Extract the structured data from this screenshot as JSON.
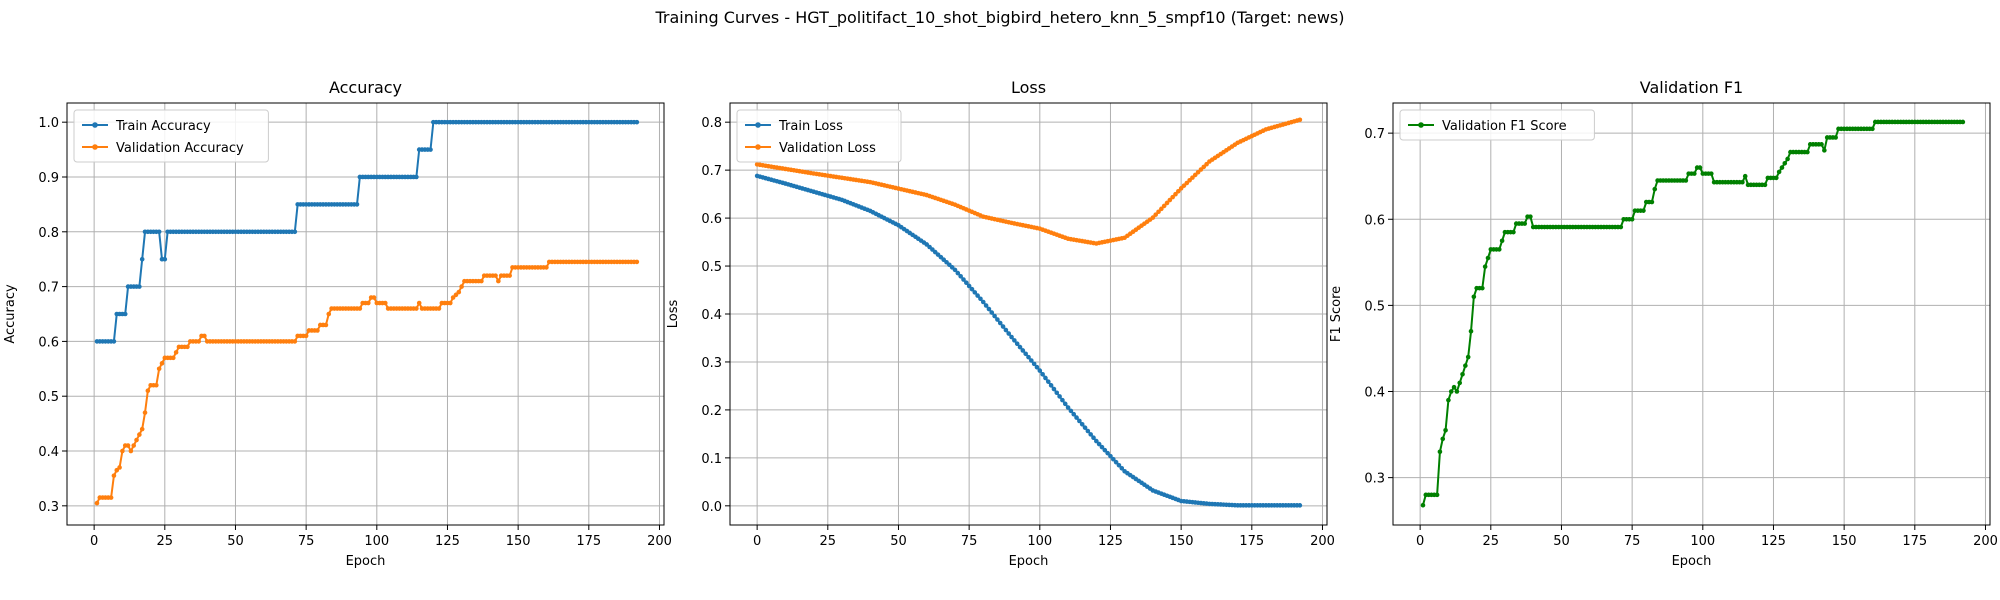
{
  "figure_title": "Training Curves - HGT_politifact_10_shot_bigbird_hetero_knn_5_smpf10 (Target: news)",
  "colors": {
    "blue": "#1f77b4",
    "orange": "#ff7f0e",
    "green": "#008000",
    "grid": "#b0b0b0"
  },
  "chart_data": [
    {
      "type": "line",
      "title": "Accuracy",
      "xlabel": "Epoch",
      "ylabel": "Accuracy",
      "xlim": [
        -9.6,
        201.6
      ],
      "ylim": [
        0.265,
        1.035
      ],
      "xticks": [
        0,
        25,
        50,
        75,
        100,
        125,
        150,
        175,
        200
      ],
      "yticks": [
        0.3,
        0.4,
        0.5,
        0.6,
        0.7,
        0.8,
        0.9,
        1.0
      ],
      "ytick_labels": [
        "0.3",
        "0.4",
        "0.5",
        "0.6",
        "0.7",
        "0.8",
        "0.9",
        "1.0"
      ],
      "grid": true,
      "legend": "upper-left",
      "series": [
        {
          "name": "Train Accuracy",
          "color": "blue",
          "knots": [
            [
              1,
              0.6
            ],
            [
              7,
              0.6
            ],
            [
              8,
              0.65
            ],
            [
              11,
              0.65
            ],
            [
              12,
              0.7
            ],
            [
              16,
              0.7
            ],
            [
              17,
              0.75
            ],
            [
              18,
              0.8
            ],
            [
              23,
              0.8
            ],
            [
              24,
              0.75
            ],
            [
              25,
              0.75
            ],
            [
              26,
              0.8
            ],
            [
              71,
              0.8
            ],
            [
              72,
              0.85
            ],
            [
              93,
              0.85
            ],
            [
              94,
              0.9
            ],
            [
              114,
              0.9
            ],
            [
              115,
              0.95
            ],
            [
              119,
              0.95
            ],
            [
              120,
              1.0
            ],
            [
              192,
              1.0
            ]
          ]
        },
        {
          "name": "Validation Accuracy",
          "color": "orange",
          "knots": [
            [
              1,
              0.305
            ],
            [
              2,
              0.315
            ],
            [
              6,
              0.315
            ],
            [
              7,
              0.355
            ],
            [
              8,
              0.365
            ],
            [
              9,
              0.37
            ],
            [
              10,
              0.4
            ],
            [
              11,
              0.41
            ],
            [
              12,
              0.41
            ],
            [
              13,
              0.4
            ],
            [
              14,
              0.41
            ],
            [
              15,
              0.42
            ],
            [
              16,
              0.43
            ],
            [
              17,
              0.44
            ],
            [
              18,
              0.47
            ],
            [
              19,
              0.51
            ],
            [
              20,
              0.52
            ],
            [
              22,
              0.52
            ],
            [
              23,
              0.55
            ],
            [
              24,
              0.56
            ],
            [
              25,
              0.57
            ],
            [
              28,
              0.57
            ],
            [
              29,
              0.58
            ],
            [
              30,
              0.59
            ],
            [
              33,
              0.59
            ],
            [
              34,
              0.6
            ],
            [
              37,
              0.6
            ],
            [
              38,
              0.61
            ],
            [
              39,
              0.61
            ],
            [
              40,
              0.6
            ],
            [
              71,
              0.6
            ],
            [
              72,
              0.61
            ],
            [
              75,
              0.61
            ],
            [
              76,
              0.62
            ],
            [
              79,
              0.62
            ],
            [
              80,
              0.63
            ],
            [
              82,
              0.63
            ],
            [
              83,
              0.65
            ],
            [
              84,
              0.66
            ],
            [
              94,
              0.66
            ],
            [
              95,
              0.67
            ],
            [
              97,
              0.67
            ],
            [
              98,
              0.68
            ],
            [
              99,
              0.68
            ],
            [
              100,
              0.67
            ],
            [
              103,
              0.67
            ],
            [
              104,
              0.66
            ],
            [
              114,
              0.66
            ],
            [
              115,
              0.67
            ],
            [
              116,
              0.66
            ],
            [
              122,
              0.66
            ],
            [
              123,
              0.67
            ],
            [
              126,
              0.67
            ],
            [
              127,
              0.68
            ],
            [
              129,
              0.69
            ],
            [
              130,
              0.7
            ],
            [
              131,
              0.71
            ],
            [
              137,
              0.71
            ],
            [
              138,
              0.72
            ],
            [
              142,
              0.72
            ],
            [
              143,
              0.71
            ],
            [
              144,
              0.72
            ],
            [
              147,
              0.72
            ],
            [
              148,
              0.735
            ],
            [
              160,
              0.735
            ],
            [
              161,
              0.745
            ],
            [
              192,
              0.745
            ]
          ]
        }
      ]
    },
    {
      "type": "line",
      "title": "Loss",
      "xlabel": "Epoch",
      "ylabel": "Loss",
      "xlim": [
        -9.6,
        201.6
      ],
      "ylim": [
        -0.04,
        0.84
      ],
      "xticks": [
        0,
        25,
        50,
        75,
        100,
        125,
        150,
        175,
        200
      ],
      "yticks": [
        0,
        0.1,
        0.2,
        0.3,
        0.4,
        0.5,
        0.6,
        0.7,
        0.8
      ],
      "ytick_labels": [
        "0.0",
        "0.1",
        "0.2",
        "0.3",
        "0.4",
        "0.5",
        "0.6",
        "0.7",
        "0.8"
      ],
      "grid": true,
      "legend": "upper-left",
      "series": [
        {
          "name": "Train Loss",
          "color": "blue",
          "knots": [
            [
              0,
              0.688
            ],
            [
              10,
              0.672
            ],
            [
              20,
              0.655
            ],
            [
              30,
              0.638
            ],
            [
              40,
              0.615
            ],
            [
              50,
              0.585
            ],
            [
              60,
              0.545
            ],
            [
              70,
              0.492
            ],
            [
              80,
              0.425
            ],
            [
              90,
              0.352
            ],
            [
              100,
              0.282
            ],
            [
              110,
              0.205
            ],
            [
              120,
              0.135
            ],
            [
              130,
              0.072
            ],
            [
              140,
              0.032
            ],
            [
              150,
              0.01
            ],
            [
              160,
              0.004
            ],
            [
              170,
              0.001
            ],
            [
              192,
              0.001
            ]
          ]
        },
        {
          "name": "Validation Loss",
          "color": "orange",
          "knots": [
            [
              0,
              0.712
            ],
            [
              20,
              0.693
            ],
            [
              40,
              0.675
            ],
            [
              60,
              0.648
            ],
            [
              70,
              0.628
            ],
            [
              80,
              0.603
            ],
            [
              90,
              0.59
            ],
            [
              100,
              0.578
            ],
            [
              110,
              0.557
            ],
            [
              120,
              0.547
            ],
            [
              130,
              0.559
            ],
            [
              140,
              0.601
            ],
            [
              150,
              0.662
            ],
            [
              160,
              0.718
            ],
            [
              170,
              0.757
            ],
            [
              180,
              0.785
            ],
            [
              192,
              0.805
            ]
          ]
        }
      ]
    },
    {
      "type": "line",
      "title": "Validation F1",
      "xlabel": "Epoch",
      "ylabel": "F1 Score",
      "xlim": [
        -9.6,
        201.6
      ],
      "ylim": [
        0.245,
        0.735
      ],
      "xticks": [
        0,
        25,
        50,
        75,
        100,
        125,
        150,
        175,
        200
      ],
      "yticks": [
        0.3,
        0.4,
        0.5,
        0.6,
        0.7
      ],
      "ytick_labels": [
        "0.3",
        "0.4",
        "0.5",
        "0.6",
        "0.7"
      ],
      "grid": true,
      "legend": "upper-left",
      "series": [
        {
          "name": "Validation F1 Score",
          "color": "green",
          "knots": [
            [
              1,
              0.268
            ],
            [
              2,
              0.28
            ],
            [
              6,
              0.28
            ],
            [
              7,
              0.33
            ],
            [
              8,
              0.345
            ],
            [
              9,
              0.355
            ],
            [
              10,
              0.39
            ],
            [
              11,
              0.4
            ],
            [
              12,
              0.405
            ],
            [
              13,
              0.4
            ],
            [
              14,
              0.41
            ],
            [
              15,
              0.42
            ],
            [
              16,
              0.43
            ],
            [
              17,
              0.44
            ],
            [
              18,
              0.47
            ],
            [
              19,
              0.51
            ],
            [
              20,
              0.52
            ],
            [
              22,
              0.52
            ],
            [
              23,
              0.545
            ],
            [
              24,
              0.555
            ],
            [
              25,
              0.565
            ],
            [
              28,
              0.565
            ],
            [
              29,
              0.575
            ],
            [
              30,
              0.585
            ],
            [
              33,
              0.585
            ],
            [
              34,
              0.595
            ],
            [
              37,
              0.595
            ],
            [
              38,
              0.603
            ],
            [
              39,
              0.603
            ],
            [
              40,
              0.591
            ],
            [
              71,
              0.591
            ],
            [
              72,
              0.6
            ],
            [
              75,
              0.6
            ],
            [
              76,
              0.61
            ],
            [
              79,
              0.61
            ],
            [
              80,
              0.62
            ],
            [
              82,
              0.62
            ],
            [
              83,
              0.635
            ],
            [
              84,
              0.645
            ],
            [
              94,
              0.645
            ],
            [
              95,
              0.653
            ],
            [
              97,
              0.653
            ],
            [
              98,
              0.66
            ],
            [
              99,
              0.66
            ],
            [
              100,
              0.653
            ],
            [
              103,
              0.653
            ],
            [
              104,
              0.643
            ],
            [
              114,
              0.643
            ],
            [
              115,
              0.65
            ],
            [
              116,
              0.64
            ],
            [
              122,
              0.64
            ],
            [
              123,
              0.648
            ],
            [
              126,
              0.648
            ],
            [
              127,
              0.655
            ],
            [
              129,
              0.665
            ],
            [
              130,
              0.67
            ],
            [
              131,
              0.678
            ],
            [
              137,
              0.678
            ],
            [
              138,
              0.687
            ],
            [
              142,
              0.687
            ],
            [
              143,
              0.68
            ],
            [
              144,
              0.695
            ],
            [
              147,
              0.695
            ],
            [
              148,
              0.705
            ],
            [
              160,
              0.705
            ],
            [
              161,
              0.713
            ],
            [
              192,
              0.713
            ]
          ]
        }
      ]
    }
  ]
}
